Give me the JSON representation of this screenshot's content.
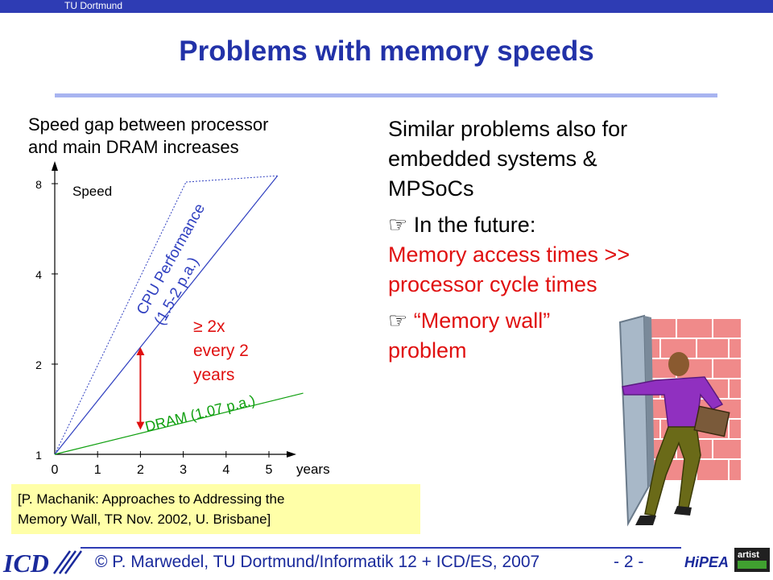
{
  "header": {
    "org": "TU Dortmund"
  },
  "title": "Problems with memory speeds",
  "left_heading": {
    "line1": "Speed gap between processor",
    "line2": "and main DRAM increases"
  },
  "right_text": {
    "line1": "Similar problems also for",
    "line2": "embedded systems &",
    "line3": "MPSoCs",
    "bullet1_symbol": "☞",
    "bullet1_lead": " In the future:",
    "bullet1_red1": "Memory access times >>",
    "bullet1_red2": "processor cycle times",
    "bullet2_symbol": "☞",
    "bullet2_quote": " “Memory wall”",
    "bullet2_tail": "problem"
  },
  "chart_data": {
    "type": "line",
    "x": [
      0,
      1,
      2,
      3,
      4,
      5
    ],
    "x_tick_labels": [
      "0",
      "1",
      "2",
      "3",
      "4",
      "5"
    ],
    "xlabel": "years",
    "y_tick_labels": [
      "1",
      "2",
      "4",
      "8"
    ],
    "y_tick_values": [
      1,
      2,
      4,
      8
    ],
    "yscale": "log2",
    "ylabel": "Speed",
    "series": [
      {
        "name": "CPU Performance",
        "name2": "(1.5-2 p.a.)",
        "color": "#3040c0",
        "x": [
          0,
          5.2
        ],
        "y": [
          1,
          8.5
        ]
      },
      {
        "name": "DRAM (1.07 p.a.)",
        "color": "#10a010",
        "x": [
          0,
          5.8
        ],
        "y": [
          1,
          1.6
        ]
      }
    ],
    "annotation": {
      "line1": "≥ 2x",
      "line2": "every 2",
      "line3": "years",
      "color": "#e01010",
      "at_x": 2
    }
  },
  "citation": {
    "line1": "[P. Machanik: Approaches to Addressing the",
    "line2": "Memory Wall, TR Nov. 2002, U. Brisbane]"
  },
  "footer": {
    "author": "© P. Marwedel, TU Dortmund/Informatik 12 + ICD/ES, 2007",
    "page": "- 2 -",
    "logo_icd": "ICD",
    "logo_hipeac": "HiPEAC",
    "logo_artist": "artist"
  }
}
